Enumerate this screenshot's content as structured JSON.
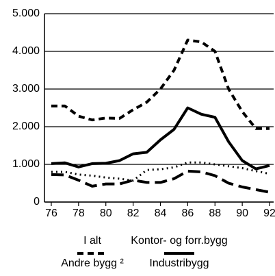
{
  "chart_data": {
    "type": "line",
    "x": [
      76,
      77,
      78,
      79,
      80,
      81,
      82,
      83,
      84,
      85,
      86,
      87,
      88,
      89,
      90,
      91,
      92
    ],
    "series": [
      {
        "name": "I alt",
        "color": "#000000",
        "dash": "9 6",
        "width": 4,
        "values": [
          2550,
          2550,
          2280,
          2180,
          2230,
          2220,
          2450,
          2650,
          3000,
          3500,
          4300,
          4250,
          4000,
          3000,
          2400,
          1950,
          1950
        ]
      },
      {
        "name": "Kontor- og forr.bygg",
        "color": "#000000",
        "dash": "none",
        "width": 4,
        "values": [
          1020,
          1040,
          930,
          1020,
          1030,
          1100,
          1280,
          1320,
          1650,
          1930,
          2500,
          2330,
          2250,
          1600,
          1100,
          880,
          970
        ]
      },
      {
        "name": "Andre bygg ²",
        "color": "#000000",
        "dash": "2 5",
        "width": 3,
        "values": [
          800,
          800,
          730,
          700,
          650,
          620,
          570,
          850,
          870,
          920,
          1050,
          1050,
          1000,
          950,
          900,
          820,
          750
        ]
      },
      {
        "name": "Industribygg",
        "color": "#000000",
        "dash": "18 8",
        "width": 4,
        "values": [
          730,
          720,
          580,
          420,
          480,
          480,
          580,
          520,
          520,
          620,
          820,
          800,
          700,
          500,
          400,
          330,
          260
        ]
      }
    ],
    "xlim": [
      75.5,
      92.3
    ],
    "xticks": [
      76,
      78,
      80,
      82,
      84,
      86,
      88,
      90,
      92
    ],
    "ylim": [
      0,
      5000
    ],
    "yticks": [
      0,
      {
        "value": 1000,
        "label": "1.000"
      },
      {
        "value": 2000,
        "label": "2.000"
      },
      {
        "value": 3000,
        "label": "3.000"
      },
      {
        "value": 4000,
        "label": "4.000"
      },
      {
        "value": 5000,
        "label": "5.000"
      }
    ],
    "grid": true
  }
}
